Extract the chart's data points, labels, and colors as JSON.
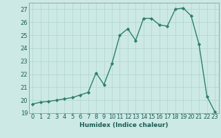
{
  "xlabel": "Humidex (Indice chaleur)",
  "x_values": [
    0,
    1,
    2,
    3,
    4,
    5,
    6,
    7,
    8,
    9,
    10,
    11,
    12,
    13,
    14,
    15,
    16,
    17,
    18,
    19,
    20,
    21,
    22,
    23
  ],
  "y_values": [
    19.7,
    19.85,
    19.9,
    20.0,
    20.1,
    20.2,
    20.4,
    20.6,
    22.1,
    21.2,
    22.8,
    25.0,
    25.5,
    24.6,
    26.3,
    26.3,
    25.8,
    25.7,
    27.0,
    27.1,
    26.5,
    24.3,
    20.3,
    19.1
  ],
  "ylim": [
    19,
    27.5
  ],
  "yticks": [
    19,
    20,
    21,
    22,
    23,
    24,
    25,
    26,
    27
  ],
  "line_color": "#2e7d6e",
  "marker_color": "#2e7d6e",
  "bg_color": "#cce9e5",
  "grid_color": "#afd4cf",
  "axis_label_fontsize": 6.5,
  "tick_fontsize": 6.0
}
